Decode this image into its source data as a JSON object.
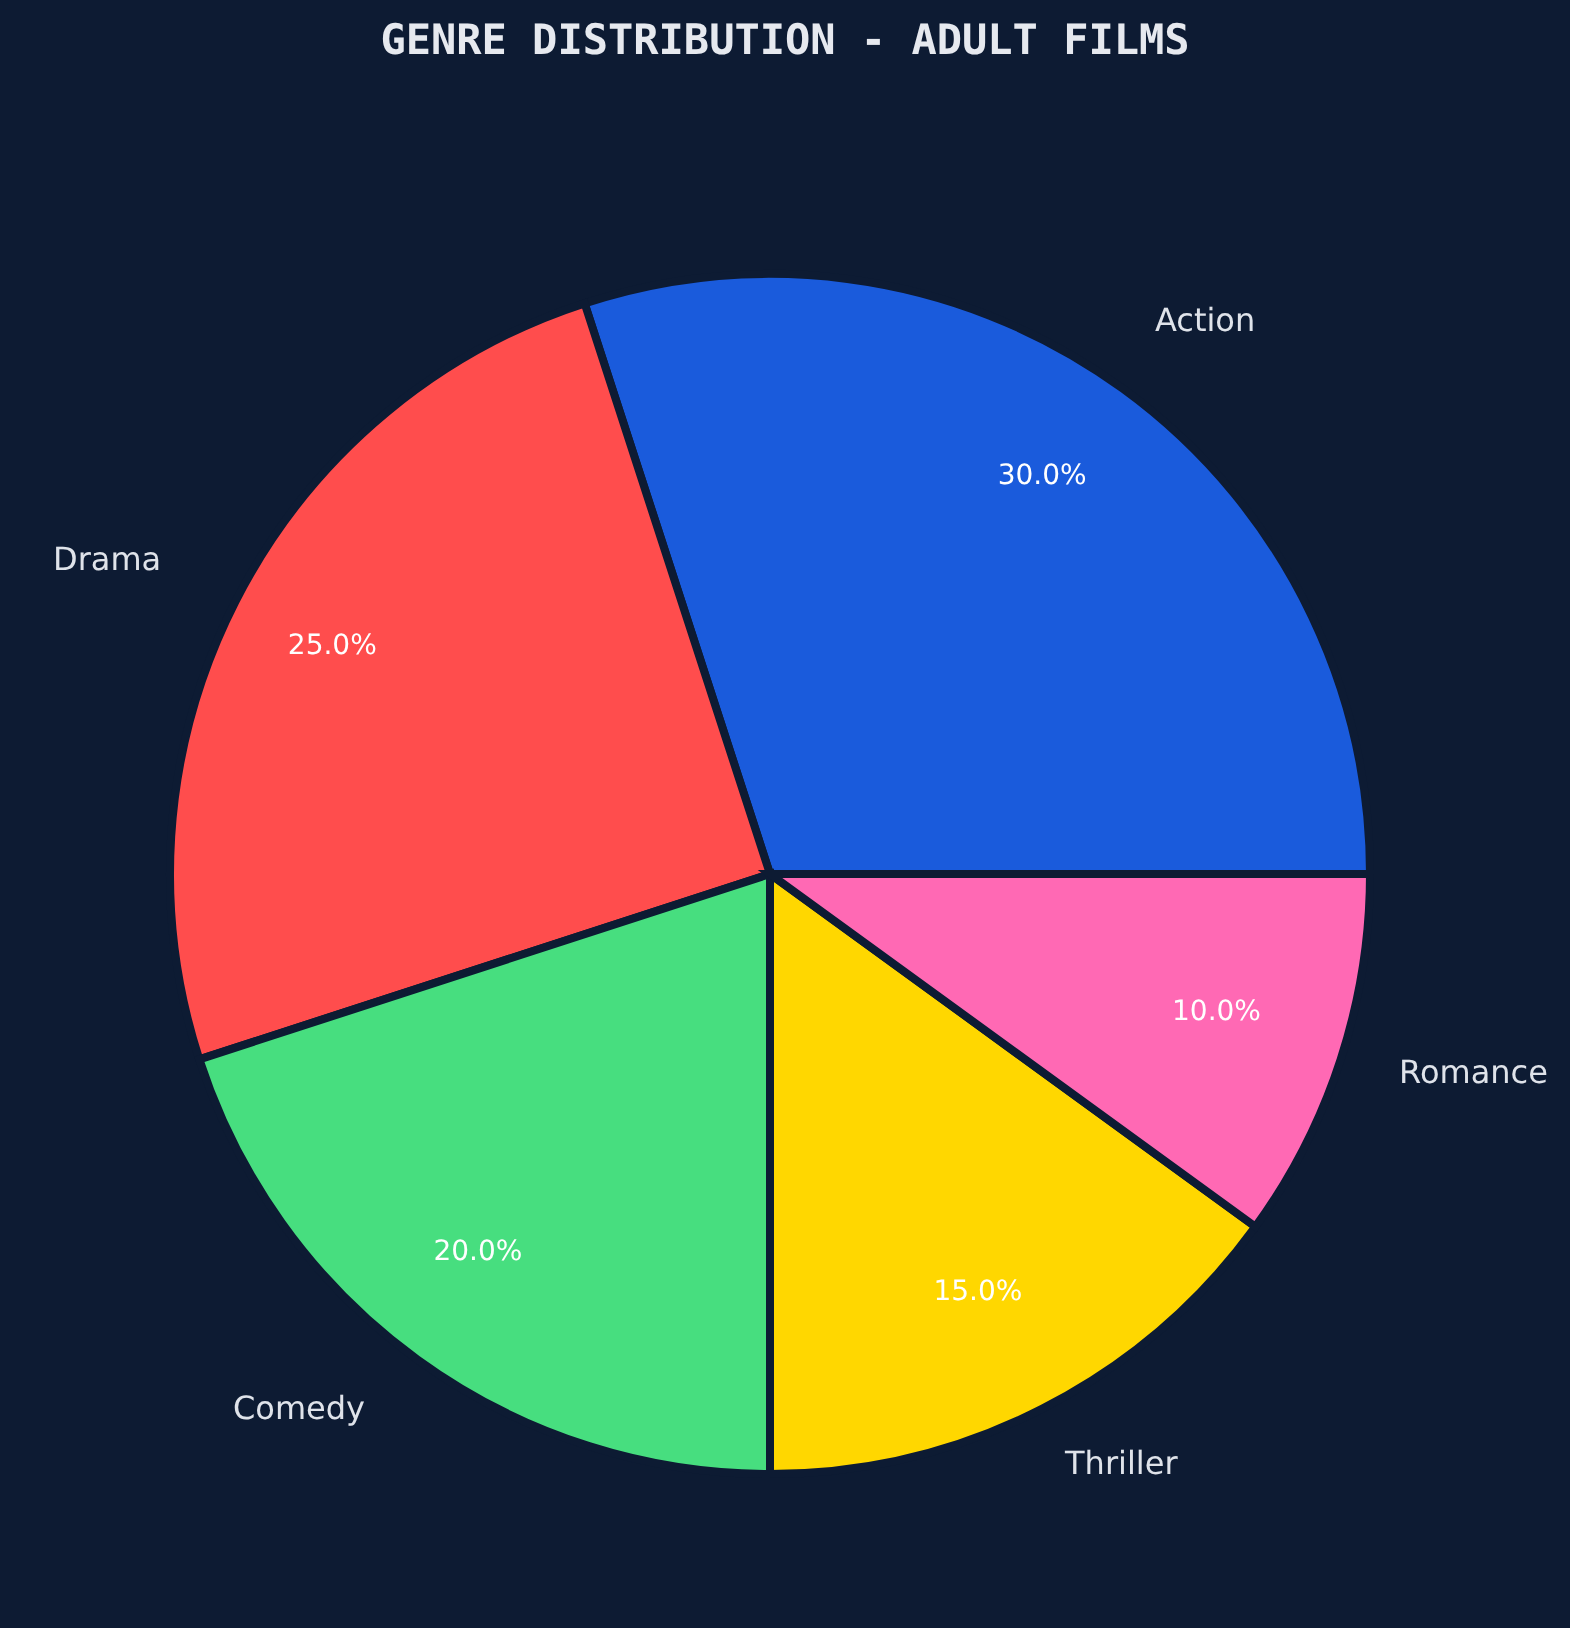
{
  "chart_data": {
    "type": "pie",
    "title": "GENRE DISTRIBUTION - ADULT FILMS",
    "categories": [
      "Action",
      "Drama",
      "Comedy",
      "Thriller",
      "Romance"
    ],
    "values": [
      30,
      25,
      20,
      15,
      10
    ],
    "value_labels": [
      "30.0%",
      "25.0%",
      "20.0%",
      "15.0%",
      "10.0%"
    ],
    "colors": [
      "#1a5bdc",
      "#ff4d4d",
      "#47de7f",
      "#ffd700",
      "#ff69b4"
    ]
  }
}
